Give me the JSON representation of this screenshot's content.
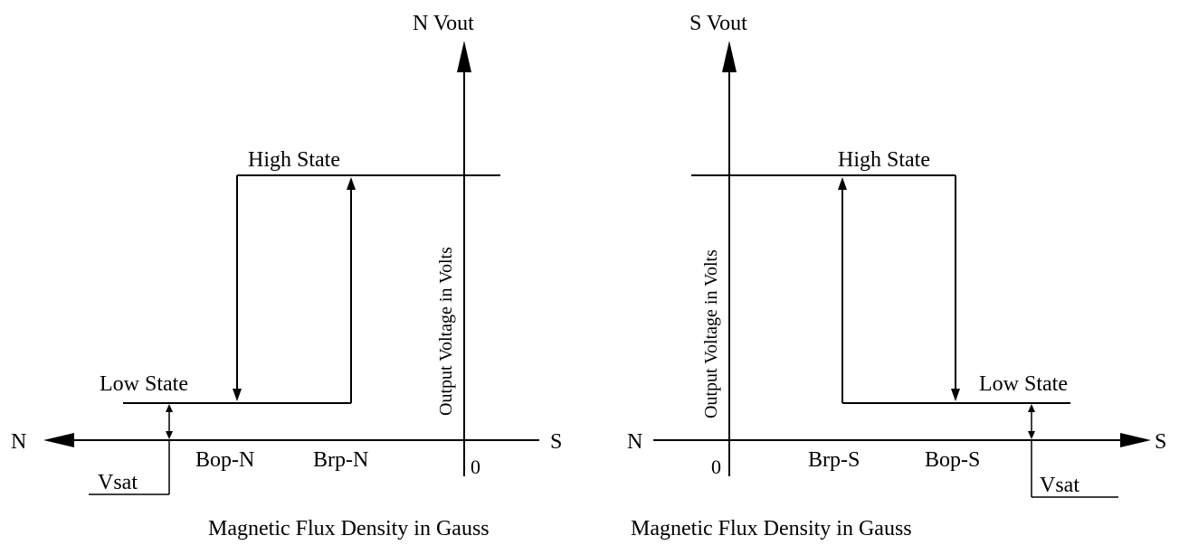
{
  "left": {
    "y_axis_label": "N Vout",
    "y_axis_title": "Output Voltage in Volts",
    "x_left_label": "N",
    "x_right_label": "S",
    "origin_label": "0",
    "high_state_label": "High State",
    "low_state_label": "Low State",
    "bop_label": "Bop-N",
    "brp_label": "Brp-N",
    "vsat_label": "Vsat",
    "x_axis_title": "Magnetic Flux Density in Gauss"
  },
  "right": {
    "y_axis_label": "S Vout",
    "y_axis_title": "Output Voltage in Volts",
    "x_left_label": "N",
    "x_right_label": "S",
    "origin_label": "0",
    "high_state_label": "High State",
    "low_state_label": "Low State",
    "brp_label": "Brp-S",
    "bop_label": "Bop-S",
    "vsat_label": "Vsat",
    "x_axis_title": "Magnetic Flux Density in Gauss"
  }
}
